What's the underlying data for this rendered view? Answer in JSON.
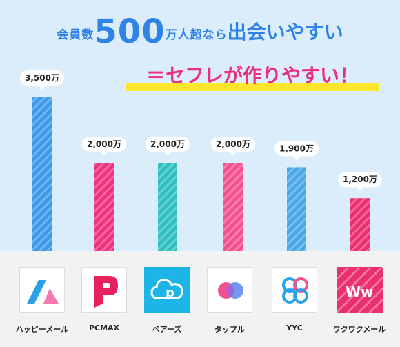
{
  "headline": {
    "part1": "会員数",
    "number": "500",
    "part2": "万人超なら",
    "part3": "出会いやすい",
    "subline": "＝セフレが作りやすい！"
  },
  "chart_data": {
    "type": "bar",
    "categories": [
      "ハッピーメール",
      "PCMAX",
      "ペアーズ",
      "タップル",
      "YYC",
      "ワクワクメール"
    ],
    "values": [
      3500,
      2000,
      2000,
      2000,
      1900,
      1200
    ],
    "value_labels": [
      "3,500万",
      "2,000万",
      "2,000万",
      "2,000万",
      "1,900万",
      "1,200万"
    ],
    "unit": "万",
    "ylim": [
      0,
      3500
    ],
    "grid": false,
    "colors": [
      "#3d9ae8",
      "#f0317e",
      "#2ebfbf",
      "#f4508e",
      "#4aa7e6",
      "#ea2f6f"
    ],
    "title": "",
    "xlabel": "",
    "ylabel": ""
  },
  "apps": [
    {
      "name": "ハッピーメール",
      "icon": "happymail-logo-icon"
    },
    {
      "name": "PCMAX",
      "icon": "pcmax-logo-icon"
    },
    {
      "name": "ペアーズ",
      "icon": "pairs-logo-icon"
    },
    {
      "name": "タップル",
      "icon": "tapple-logo-icon"
    },
    {
      "name": "YYC",
      "icon": "yyc-logo-icon"
    },
    {
      "name": "ワクワクメール",
      "icon": "wakuwakumail-logo-icon"
    }
  ]
}
